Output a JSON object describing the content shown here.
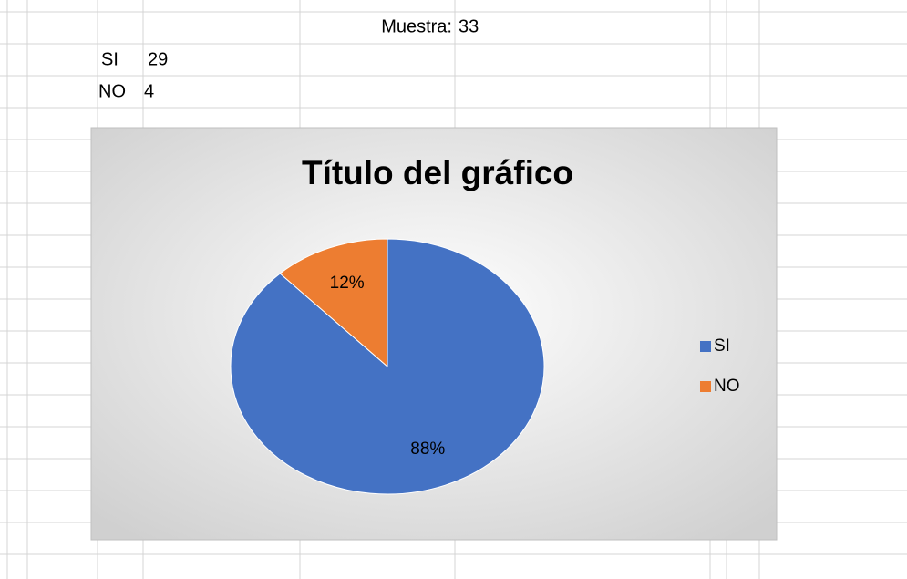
{
  "sheet": {
    "rows": [
      [
        "Muestra:",
        33
      ],
      [
        "SI",
        29
      ],
      [
        "NO",
        4
      ]
    ]
  },
  "chart_data": {
    "type": "pie",
    "title": "Título del gráfico",
    "categories": [
      "SI",
      "NO"
    ],
    "values": [
      88,
      12
    ],
    "value_labels": [
      "88%",
      "12%"
    ],
    "colors": [
      "#4472c4",
      "#ed7d31"
    ],
    "legend": "right"
  }
}
